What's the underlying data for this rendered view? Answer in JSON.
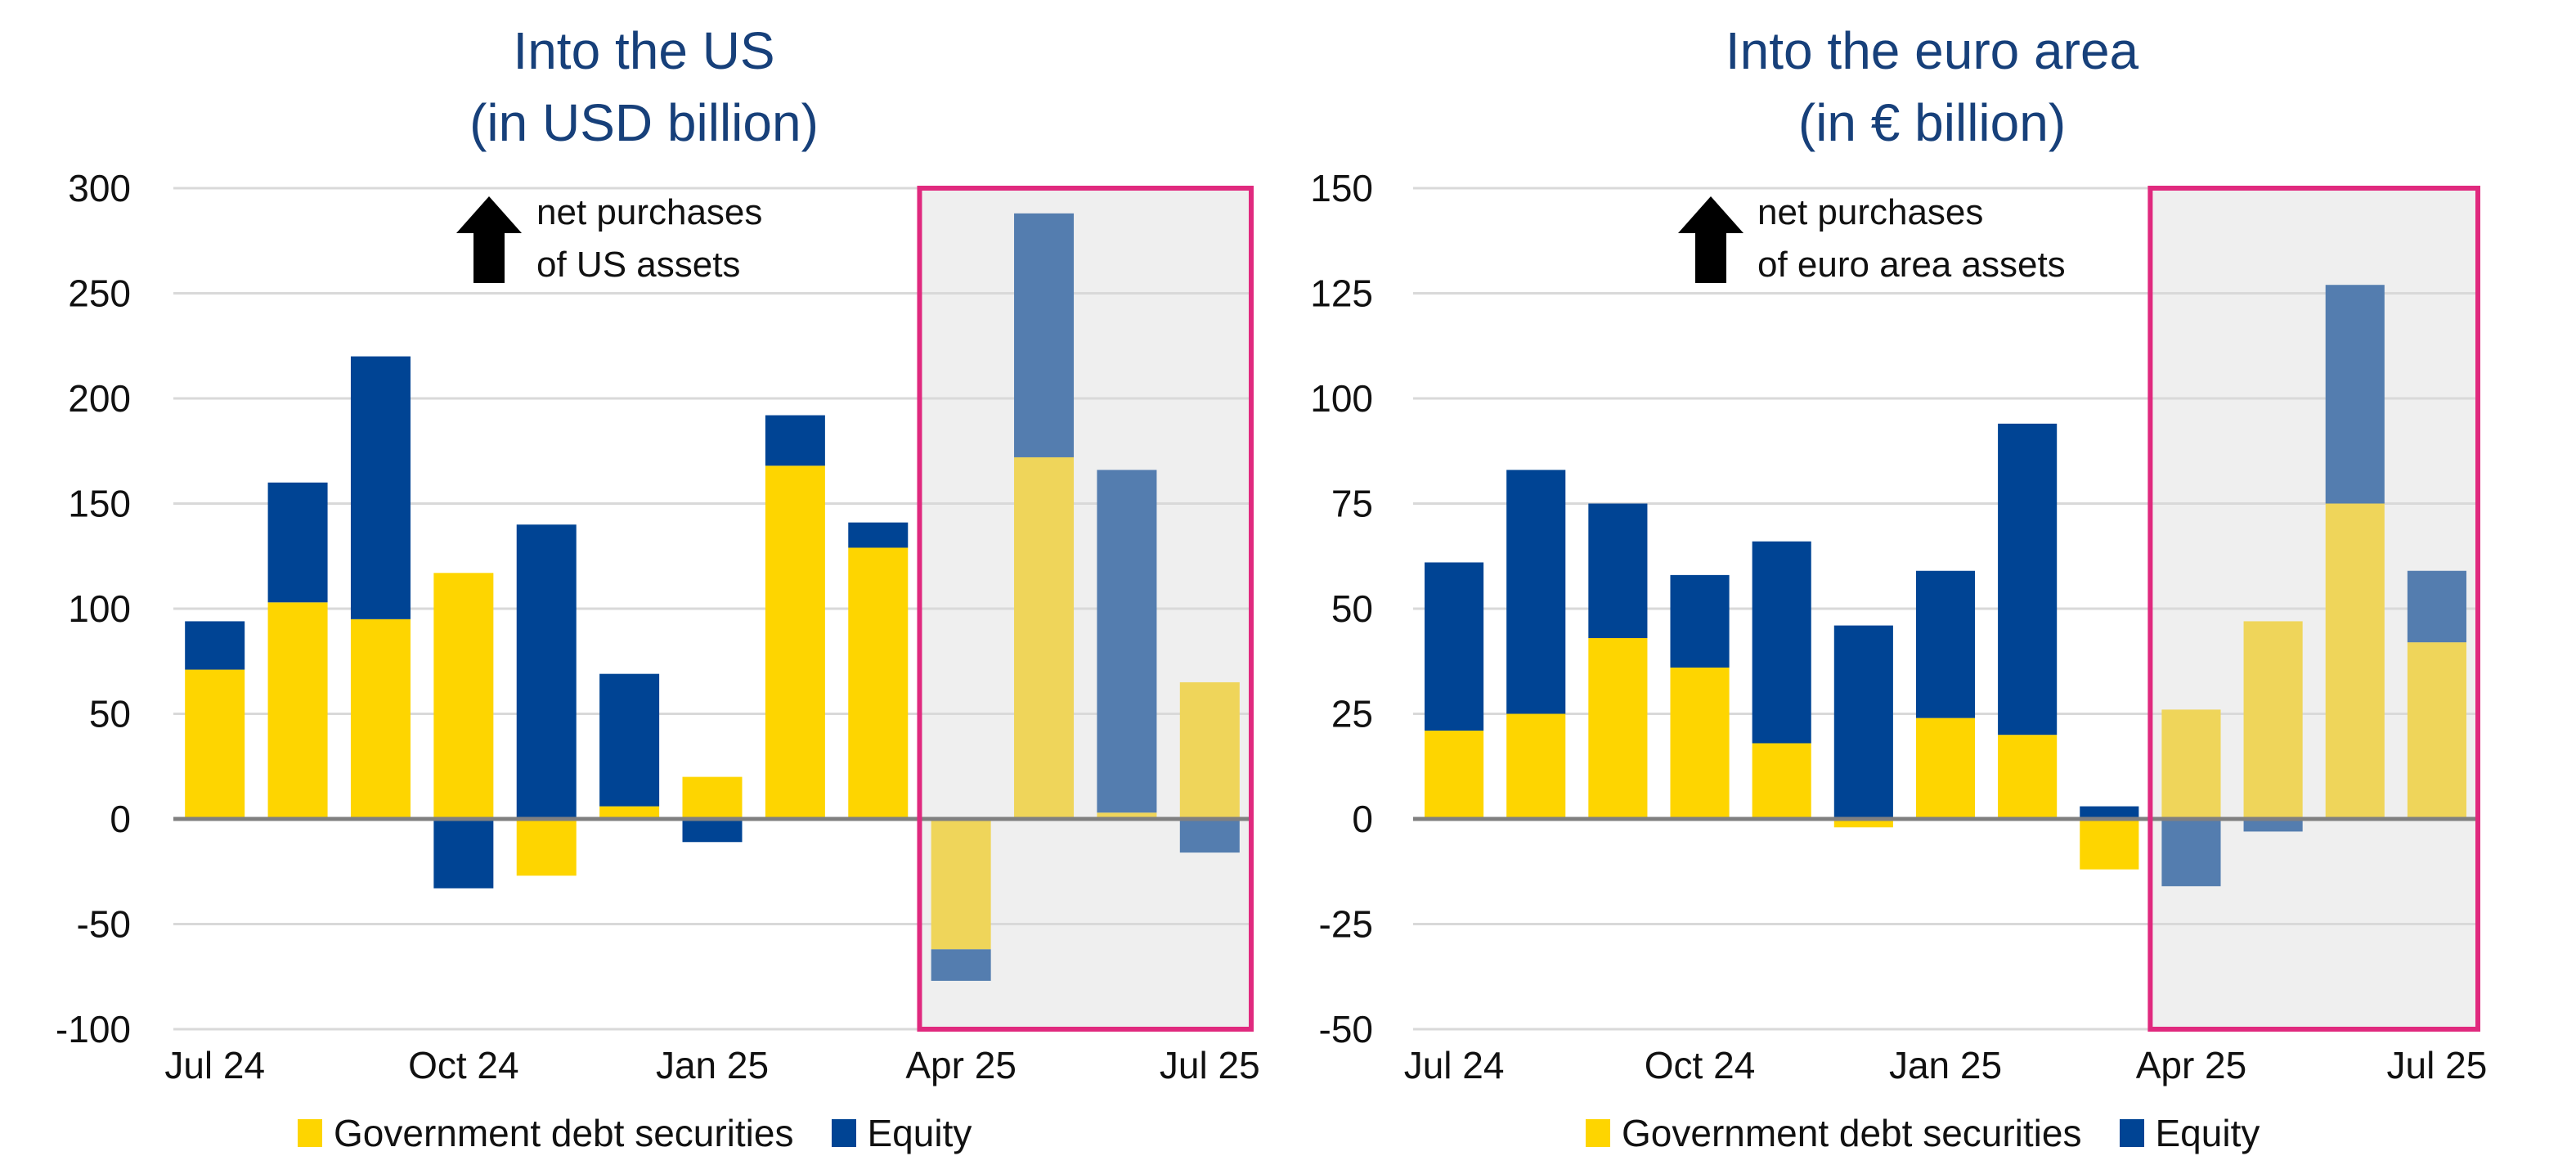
{
  "colors": {
    "gov": "#fed500",
    "equity": "#004494",
    "gov_hl": "#efd55a",
    "equity_hl": "#547daf",
    "highlight_bg": "#efefef",
    "highlight_border": "#e0297e",
    "grid": "#d9d9d9",
    "zero": "#808080",
    "title": "#17407a"
  },
  "legend": {
    "gov": "Government debt securities",
    "equity": "Equity"
  },
  "chart_data": [
    {
      "type": "bar",
      "stacked": true,
      "title": "Into the US",
      "subtitle": "(in USD billion)",
      "annotation": [
        "net purchases",
        "of US assets"
      ],
      "categories": [
        "Jul 24",
        "Aug 24",
        "Sep 24",
        "Oct 24",
        "Nov 24",
        "Dec 24",
        "Jan 25",
        "Feb 25",
        "Mar 25",
        "Apr 25",
        "May 25",
        "Jun 25",
        "Jul 25"
      ],
      "x_tick_labels": [
        "Jul 24",
        "Oct 24",
        "Jan 25",
        "Apr 25",
        "Jul 25"
      ],
      "x_tick_indices": [
        0,
        3,
        6,
        9,
        12
      ],
      "series": [
        {
          "name": "Government debt securities",
          "values": [
            71,
            103,
            95,
            117,
            -27,
            6,
            20,
            168,
            129,
            -62,
            172,
            3,
            65
          ]
        },
        {
          "name": "Equity",
          "values": [
            23,
            57,
            125,
            -33,
            140,
            63,
            -11,
            24,
            12,
            -15,
            116,
            163,
            -16
          ]
        }
      ],
      "highlight_from_index": 9,
      "ylim": [
        -100,
        300
      ],
      "yticks": [
        300,
        250,
        200,
        150,
        100,
        50,
        0,
        -50,
        -100
      ],
      "xlabel": "",
      "ylabel": "",
      "grid": true,
      "legend_position": "bottom"
    },
    {
      "type": "bar",
      "stacked": true,
      "title": "Into the euro area",
      "subtitle": "(in € billion)",
      "annotation": [
        "net purchases",
        "of euro area assets"
      ],
      "categories": [
        "Jul 24",
        "Aug 24",
        "Sep 24",
        "Oct 24",
        "Nov 24",
        "Dec 24",
        "Jan 25",
        "Feb 25",
        "Mar 25",
        "Apr 25",
        "May 25",
        "Jun 25",
        "Jul 25"
      ],
      "x_tick_labels": [
        "Jul 24",
        "Oct 24",
        "Jan 25",
        "Apr 25",
        "Jul 25"
      ],
      "x_tick_indices": [
        0,
        3,
        6,
        9,
        12
      ],
      "series": [
        {
          "name": "Government debt securities",
          "values": [
            21,
            25,
            43,
            36,
            18,
            -2,
            24,
            20,
            -12,
            26,
            47,
            75,
            42
          ]
        },
        {
          "name": "Equity",
          "values": [
            40,
            58,
            32,
            22,
            48,
            46,
            35,
            74,
            3,
            -16,
            -3,
            52,
            17
          ]
        }
      ],
      "highlight_from_index": 9,
      "ylim": [
        -50,
        150
      ],
      "yticks": [
        150,
        125,
        100,
        75,
        50,
        25,
        0,
        -25,
        -50
      ],
      "xlabel": "",
      "ylabel": "",
      "grid": true,
      "legend_position": "bottom"
    }
  ]
}
